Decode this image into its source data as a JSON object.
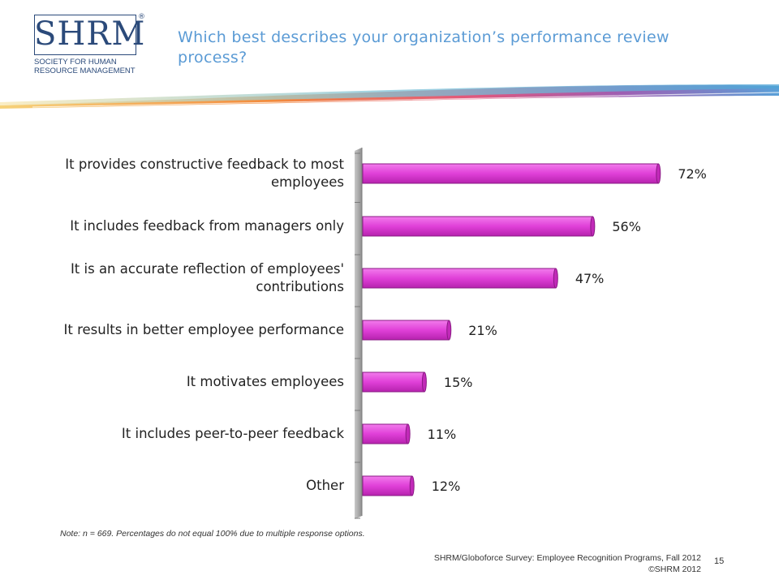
{
  "logo": {
    "letters": "SHRM",
    "reg_mark": "®",
    "subtitle": "SOCIETY FOR HUMAN\nRESOURCE MANAGEMENT"
  },
  "title": "Which best describes your organization’s performance review process?",
  "colors": {
    "title": "#5b9bd5",
    "bar": "#e040d8",
    "bar_dark": "#8a1a84"
  },
  "chart_data": {
    "type": "bar",
    "orientation": "horizontal",
    "categories": [
      "It provides constructive feedback to most employees",
      "It includes feedback from managers only",
      "It is an accurate reflection of employees' contributions",
      "It results in better employee performance",
      "It motivates employees",
      "It includes peer-to-peer feedback",
      "Other"
    ],
    "values": [
      72,
      56,
      47,
      21,
      15,
      11,
      12
    ],
    "data_labels": [
      "72%",
      "56%",
      "47%",
      "21%",
      "15%",
      "11%",
      "12%"
    ],
    "xlim": [
      0,
      100
    ],
    "grid": false,
    "legend": "none"
  },
  "note": "Note: n = 669. Percentages do not equal 100% due to multiple response options.",
  "source": {
    "line1": "SHRM/Globoforce Survey: Employee Recognition Programs, Fall 2012",
    "line2": "©SHRM 2012"
  },
  "page_number": "15"
}
